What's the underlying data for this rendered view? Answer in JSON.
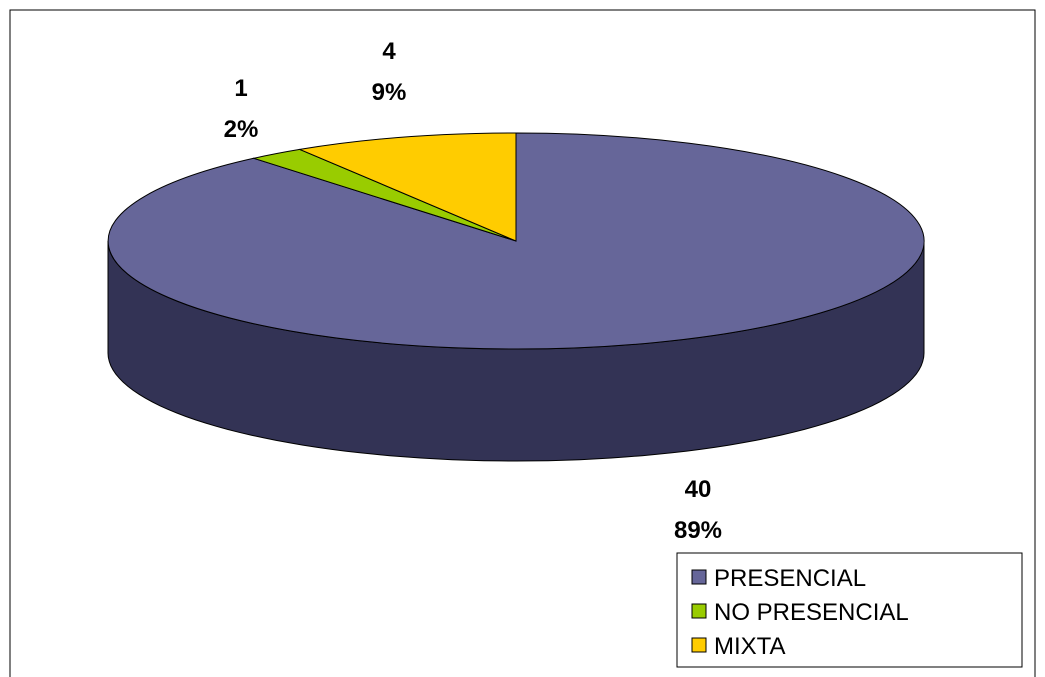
{
  "chart_data": {
    "type": "pie",
    "style": "3d-pie",
    "categories": [
      "PRESENCIAL",
      "NO PRESENCIAL",
      "MIXTA"
    ],
    "values": [
      40,
      1,
      4
    ],
    "percentages": [
      "89%",
      "2%",
      "9%"
    ],
    "value_labels": [
      "40",
      "1",
      "4"
    ],
    "colors": [
      "#666699",
      "#99CC00",
      "#FFCC00"
    ],
    "side_colors": [
      "#333355",
      "#4D6600",
      "#806600"
    ],
    "legend": {
      "entries": [
        "PRESENCIAL",
        "NO PRESENCIAL",
        "MIXTA"
      ],
      "placement": "bottom-right"
    },
    "title": "",
    "start_angle_deg": 0,
    "direction": "clockwise"
  }
}
